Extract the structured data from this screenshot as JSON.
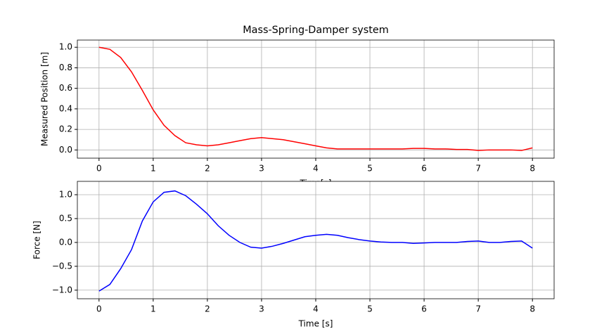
{
  "chart_data": [
    {
      "type": "line",
      "title": "Mass-Spring-Damper system",
      "xlabel": "Time[s]",
      "ylabel": "Measured Position [m]",
      "color": "#ff0000",
      "grid": true,
      "x": [
        0,
        0.2,
        0.4,
        0.6,
        0.8,
        1.0,
        1.2,
        1.4,
        1.6,
        1.8,
        2.0,
        2.2,
        2.4,
        2.6,
        2.8,
        3.0,
        3.2,
        3.4,
        3.6,
        3.8,
        4.0,
        4.2,
        4.4,
        4.6,
        4.8,
        5.0,
        5.2,
        5.4,
        5.6,
        5.8,
        6.0,
        6.2,
        6.4,
        6.6,
        6.8,
        7.0,
        7.2,
        7.4,
        7.6,
        7.8,
        8.0
      ],
      "values": [
        1.0,
        0.98,
        0.9,
        0.76,
        0.58,
        0.39,
        0.24,
        0.14,
        0.07,
        0.05,
        0.04,
        0.05,
        0.07,
        0.09,
        0.11,
        0.12,
        0.11,
        0.1,
        0.08,
        0.06,
        0.04,
        0.02,
        0.01,
        0.01,
        0.01,
        0.01,
        0.01,
        0.01,
        0.01,
        0.015,
        0.015,
        0.01,
        0.01,
        0.005,
        0.005,
        -0.005,
        0.0,
        0.0,
        0.0,
        -0.005,
        0.02
      ],
      "xlim": [
        -0.4,
        8.4
      ],
      "ylim": [
        -0.08,
        1.07
      ],
      "xticks": [
        0,
        1,
        2,
        3,
        4,
        5,
        6,
        7,
        8
      ],
      "yticks": [
        {
          "value": 0,
          "label": "0.0"
        },
        {
          "value": 0.2,
          "label": "0.2"
        },
        {
          "value": 0.4,
          "label": "0.4"
        },
        {
          "value": 0.6,
          "label": "0.6"
        },
        {
          "value": 0.8,
          "label": "0.8"
        },
        {
          "value": 1,
          "label": "1.0"
        }
      ]
    },
    {
      "type": "line",
      "xlabel": "Time [s]",
      "ylabel": "Force [N]",
      "color": "#0000ff",
      "grid": true,
      "x": [
        0,
        0.2,
        0.4,
        0.6,
        0.8,
        1.0,
        1.2,
        1.4,
        1.6,
        1.8,
        2.0,
        2.2,
        2.4,
        2.6,
        2.8,
        3.0,
        3.2,
        3.4,
        3.6,
        3.8,
        4.0,
        4.2,
        4.4,
        4.6,
        4.8,
        5.0,
        5.2,
        5.4,
        5.6,
        5.8,
        6.0,
        6.2,
        6.4,
        6.6,
        6.8,
        7.0,
        7.2,
        7.4,
        7.6,
        7.8,
        8.0
      ],
      "values": [
        -1.02,
        -0.88,
        -0.55,
        -0.15,
        0.45,
        0.85,
        1.05,
        1.08,
        0.98,
        0.8,
        0.6,
        0.35,
        0.15,
        0.0,
        -0.1,
        -0.12,
        -0.08,
        -0.02,
        0.05,
        0.12,
        0.15,
        0.17,
        0.15,
        0.1,
        0.06,
        0.03,
        0.01,
        0.0,
        0.0,
        -0.02,
        -0.01,
        0.0,
        0.0,
        0.0,
        0.02,
        0.03,
        0.0,
        0.0,
        0.02,
        0.03,
        -0.12
      ],
      "xlim": [
        -0.4,
        8.4
      ],
      "ylim": [
        -1.18,
        1.28
      ],
      "xticks": [
        0,
        1,
        2,
        3,
        4,
        5,
        6,
        7,
        8
      ],
      "yticks": [
        {
          "value": -1,
          "label": "−1.0"
        },
        {
          "value": -0.5,
          "label": "−0.5"
        },
        {
          "value": 0,
          "label": "0.0"
        },
        {
          "value": 0.5,
          "label": "0.5"
        },
        {
          "value": 1,
          "label": "1.0"
        }
      ]
    }
  ]
}
